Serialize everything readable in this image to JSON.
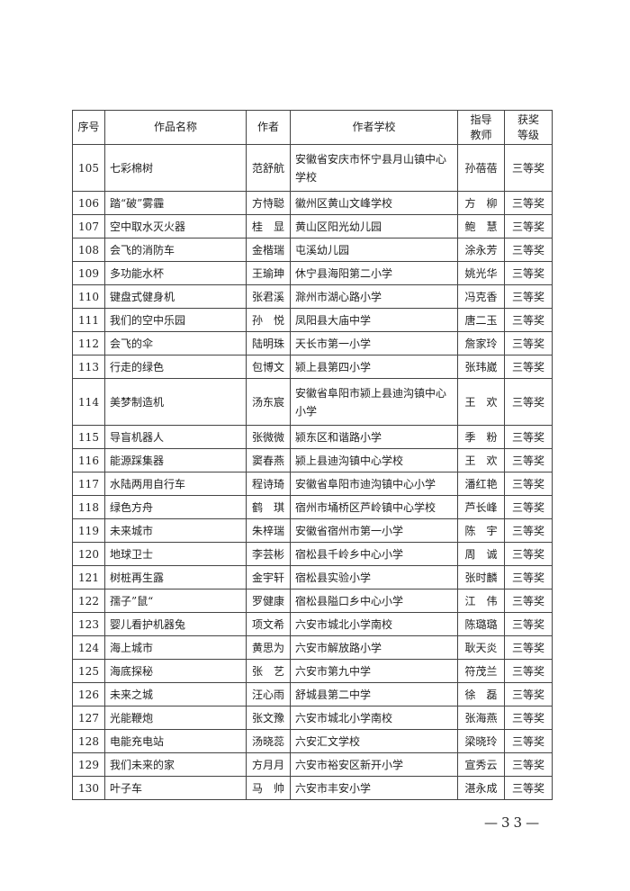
{
  "table": {
    "headers": [
      "序号",
      "作品名称",
      "作者",
      "作者学校",
      "指导\n教师",
      "获奖\n等级"
    ],
    "rows": [
      [
        "105",
        "七彩棉树",
        "范舒航",
        "安徽省安庆市怀宁县月山镇中心学校",
        "孙蓓蓓",
        "三等奖"
      ],
      [
        "106",
        "踏“破”雾霾",
        "方恃聪",
        "徽州区黄山文峰学校",
        "方　柳",
        "三等奖"
      ],
      [
        "107",
        "空中取水灭火器",
        "桂　显",
        "黄山区阳光幼儿园",
        "鲍　慧",
        "三等奖"
      ],
      [
        "108",
        "会飞的消防车",
        "金楷瑞",
        "屯溪幼儿园",
        "涂永芳",
        "三等奖"
      ],
      [
        "109",
        "多功能水杯",
        "王瑜珅",
        "休宁县海阳第二小学",
        "姚光华",
        "三等奖"
      ],
      [
        "110",
        "键盘式健身机",
        "张君溪",
        "滁州市湖心路小学",
        "冯克香",
        "三等奖"
      ],
      [
        "111",
        "我们的空中乐园",
        "孙　悦",
        "凤阳县大庙中学",
        "唐二玉",
        "三等奖"
      ],
      [
        "112",
        "会飞的伞",
        "陆明珠",
        "天长市第一小学",
        "詹家玲",
        "三等奖"
      ],
      [
        "113",
        "行走的绿色",
        "包博文",
        "颍上县第四小学",
        "张玮崴",
        "三等奖"
      ],
      [
        "114",
        "美梦制造机",
        "汤东宸",
        "安徽省阜阳市颍上县迪沟镇中心小学",
        "王　欢",
        "三等奖"
      ],
      [
        "115",
        "导盲机器人",
        "张微微",
        "颍东区和谐路小学",
        "季　粉",
        "三等奖"
      ],
      [
        "116",
        "能源踩集器",
        "窦春燕",
        "颍上县迪沟镇中心学校",
        "王　欢",
        "三等奖"
      ],
      [
        "117",
        "水陆两用自行车",
        "程诗琦",
        "安徽省阜阳市迪沟镇中心小学",
        "潘红艳",
        "三等奖"
      ],
      [
        "118",
        "绿色方舟",
        "鹤　琪",
        "宿州市埇桥区芦岭镇中心学校",
        "芦长峰",
        "三等奖"
      ],
      [
        "119",
        "未来城市",
        "朱梓瑞",
        "安徽省宿州市第一小学",
        "陈　宇",
        "三等奖"
      ],
      [
        "120",
        "地球卫士",
        "李芸彬",
        "宿松县千岭乡中心小学",
        "周　诚",
        "三等奖"
      ],
      [
        "121",
        "树桩再生露",
        "金宇轩",
        "宿松县实验小学",
        "张时麟",
        "三等奖"
      ],
      [
        "122",
        "孺子”鼠“",
        "罗健康",
        "宿松县隘口乡中心小学",
        "江　伟",
        "三等奖"
      ],
      [
        "123",
        "婴儿看护机器兔",
        "项文希",
        "六安市城北小学南校",
        "陈璐璐",
        "三等奖"
      ],
      [
        "124",
        "海上城市",
        "黄思为",
        "六安市解放路小学",
        "耿天炎",
        "三等奖"
      ],
      [
        "125",
        "海底探秘",
        "张　艺",
        "六安市第九中学",
        "符茂兰",
        "三等奖"
      ],
      [
        "126",
        "未来之城",
        "汪心雨",
        "舒城县第二中学",
        "徐　磊",
        "三等奖"
      ],
      [
        "127",
        "光能鞭炮",
        "张文豫",
        "六安市城北小学南校",
        "张海燕",
        "三等奖"
      ],
      [
        "128",
        "电能充电站",
        "汤晓蕊",
        "六安汇文学校",
        "梁晓玲",
        "三等奖"
      ],
      [
        "129",
        "我们未来的家",
        "方月月",
        "六安市裕安区新开小学",
        "宣秀云",
        "三等奖"
      ],
      [
        "130",
        "叶子车",
        "马　帅",
        "六安市丰安小学",
        "湛永成",
        "三等奖"
      ]
    ]
  },
  "page_number": "—33—"
}
